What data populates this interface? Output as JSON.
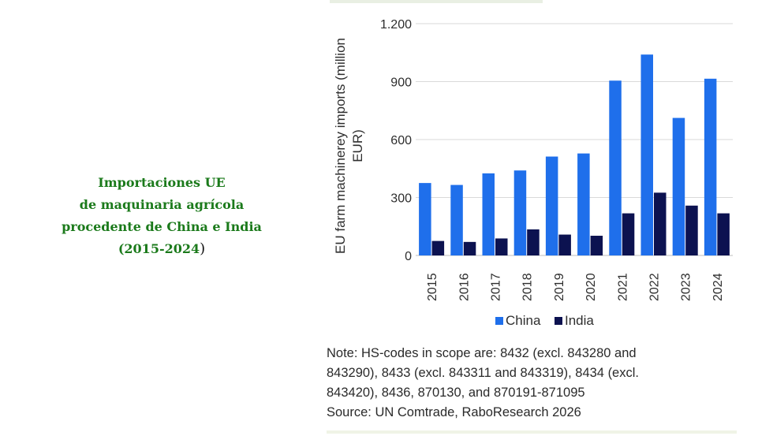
{
  "caption": {
    "lines": [
      "Importaciones UE",
      "de maquinaria agrícola",
      "procedente de China e India"
    ],
    "years": "(2015-2024",
    "close_paren": ")"
  },
  "chart_data": {
    "type": "bar",
    "categories": [
      "2015",
      "2016",
      "2017",
      "2018",
      "2019",
      "2020",
      "2021",
      "2022",
      "2023",
      "2024"
    ],
    "series": [
      {
        "name": "China",
        "color": "#1f6feb",
        "values": [
          375,
          365,
          425,
          440,
          512,
          528,
          905,
          1040,
          712,
          915
        ]
      },
      {
        "name": "India",
        "color": "#0c1250",
        "values": [
          75,
          70,
          88,
          135,
          108,
          102,
          218,
          325,
          258,
          218
        ]
      }
    ],
    "ylabel_lines": [
      "EU farm machinerey imports (million",
      "EUR)"
    ],
    "yticks": [
      0,
      300,
      600,
      900,
      1200
    ],
    "ytick_labels": [
      "0",
      "300",
      "600",
      "900",
      "1.200"
    ],
    "ylim": [
      0,
      1200
    ],
    "grid": true,
    "legend_position": "bottom"
  },
  "note": {
    "lines": [
      "Note: HS-codes in scope are: 8432 (excl. 843280 and",
      "843290), 8433 (excl. 843311 and 843319), 8434 (excl.",
      "843420), 8436, 870130, and 870191-871095",
      "Source: UN Comtrade, RaboResearch 2026"
    ]
  }
}
